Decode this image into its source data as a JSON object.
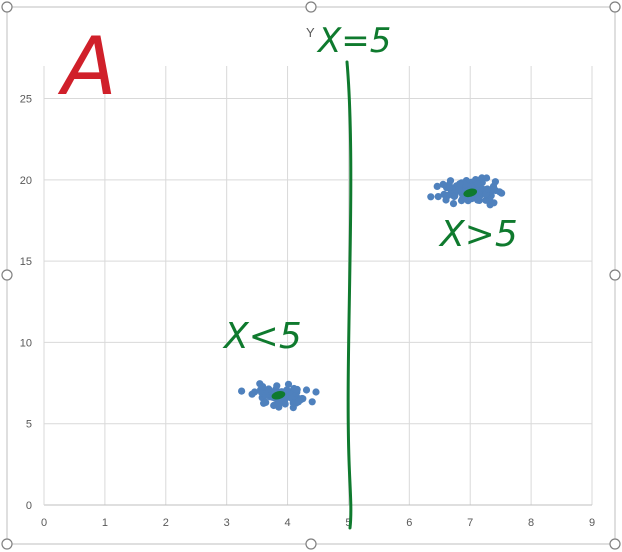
{
  "chart_data": {
    "type": "scatter",
    "title": "",
    "xlabel": "",
    "ylabel": "Y",
    "xlim": [
      0,
      9
    ],
    "ylim": [
      0,
      27
    ],
    "x_ticks": [
      "0",
      "1",
      "2",
      "3",
      "4",
      "5",
      "6",
      "7",
      "8",
      "9"
    ],
    "y_ticks": [
      "0",
      "5",
      "10",
      "15",
      "20",
      "25"
    ],
    "grid": true,
    "marker_color": "#4f81bd",
    "clusters": [
      {
        "name": "X<5",
        "center": [
          3.9,
          6.7
        ],
        "spread_x": 0.45,
        "spread_y": 0.6,
        "count": 70
      },
      {
        "name": "X>5",
        "center": [
          7.0,
          19.3
        ],
        "spread_x": 0.45,
        "spread_y": 0.6,
        "count": 110
      }
    ],
    "centroids": [
      {
        "x": 3.85,
        "y": 6.75,
        "color": "#0f7a2e"
      },
      {
        "x": 7.0,
        "y": 19.2,
        "color": "#0f7a2e"
      }
    ],
    "annotations": {
      "corner_letter": "A",
      "divider_label": "X=5",
      "left_label": "X<5",
      "right_label": "X>5",
      "divider_x": 5,
      "ink_green": "#0f7a2e",
      "ink_red": "#d0202a"
    }
  }
}
